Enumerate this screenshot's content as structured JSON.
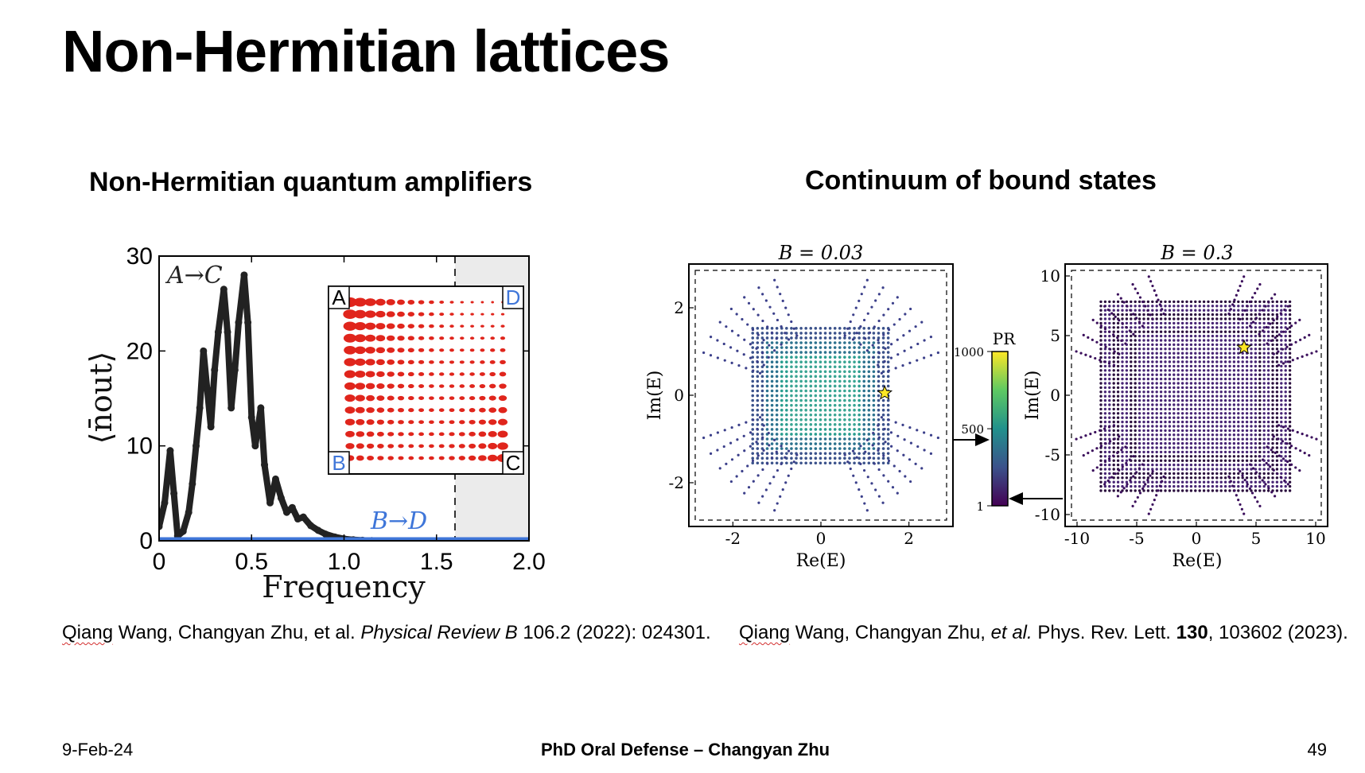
{
  "slide": {
    "title": "Non-Hermitian lattices",
    "left_heading": "Non-Hermitian quantum amplifiers",
    "right_heading": "Continuum of bound states",
    "left_citation": {
      "author_first": "Qiang",
      "authors_rest": " Wang, Changyan Zhu, et al. ",
      "journal": "Physical Review B",
      "details": " 106.2 (2022): 024301."
    },
    "right_citation": {
      "author_first": "Qiang",
      "authors_rest": " Wang, Changyan Zhu, ",
      "etal": "et al.",
      "journal": " Phys. Rev. Lett. ",
      "volume": "130",
      "details": ", 103602 (2023)."
    },
    "footer": {
      "date": "9-Feb-24",
      "center": "PhD Oral Defense – Changyan Zhu",
      "page": "49"
    }
  },
  "chart_data": [
    {
      "type": "scatter",
      "title": "",
      "xlabel": "Frequency",
      "ylabel": "⟨n̄out⟩",
      "xlim": [
        0,
        2.0
      ],
      "ylim": [
        0,
        30
      ],
      "xticks": [
        "0",
        "0.5",
        "1.0",
        "1.5",
        "2.0"
      ],
      "yticks": [
        "0",
        "10",
        "20",
        "30"
      ],
      "grid": false,
      "vline_x": 1.6,
      "shaded_region": [
        1.6,
        2.0
      ],
      "annotations": [
        "A→C",
        "B→D"
      ],
      "series": [
        {
          "name": "A→C",
          "color": "#222222",
          "x": [
            0,
            0.03,
            0.06,
            0.08,
            0.1,
            0.13,
            0.16,
            0.18,
            0.2,
            0.22,
            0.24,
            0.26,
            0.28,
            0.3,
            0.32,
            0.35,
            0.37,
            0.39,
            0.41,
            0.43,
            0.46,
            0.48,
            0.5,
            0.52,
            0.55,
            0.57,
            0.6,
            0.63,
            0.66,
            0.69,
            0.72,
            0.75,
            0.78,
            0.82,
            0.86,
            0.9,
            0.95,
            1.0,
            1.05,
            1.1,
            1.15,
            1.2
          ],
          "y": [
            1.5,
            4,
            9.5,
            5,
            0.5,
            1,
            3,
            6,
            10,
            14,
            20,
            16,
            12,
            18,
            22,
            26.5,
            22,
            14,
            18,
            23,
            28,
            23,
            13,
            10,
            14,
            8,
            4,
            6.5,
            4.5,
            3,
            3.5,
            2.3,
            2.5,
            1.6,
            1.1,
            0.7,
            0.4,
            0.2,
            0.1,
            0.05,
            0.02,
            0
          ]
        },
        {
          "name": "B→D",
          "color": "#3f76d9",
          "x": [
            0,
            2.0
          ],
          "y": [
            0,
            0
          ]
        }
      ],
      "inset": {
        "corner_labels": [
          "A",
          "D",
          "B",
          "C"
        ],
        "description_rows": 14,
        "description_cols": 16,
        "dot_color": "#e0251c"
      }
    },
    {
      "type": "scatter",
      "title": "B = 0.03",
      "xlabel": "Re(E)",
      "ylabel": "Im(E)",
      "xlim": [
        -3,
        3
      ],
      "ylim": [
        -3,
        3
      ],
      "xticks": [
        "-2",
        "0",
        "2"
      ],
      "yticks": [
        "-2",
        "0",
        "2"
      ],
      "marked_point": [
        1.45,
        0.05
      ]
    },
    {
      "type": "heatmap",
      "title": "PR",
      "colorbar_ticks": [
        "1",
        "500",
        "1000"
      ],
      "range": [
        1,
        1000
      ]
    },
    {
      "type": "scatter",
      "title": "B = 0.3",
      "xlabel": "Re(E)",
      "ylabel": "Im(E)",
      "xlim": [
        -11,
        11
      ],
      "ylim": [
        -11,
        11
      ],
      "xticks": [
        "-10",
        "-5",
        "0",
        "5",
        "10"
      ],
      "yticks": [
        "-10",
        "-5",
        "0",
        "5",
        "10"
      ],
      "marked_point": [
        4,
        4
      ]
    }
  ]
}
